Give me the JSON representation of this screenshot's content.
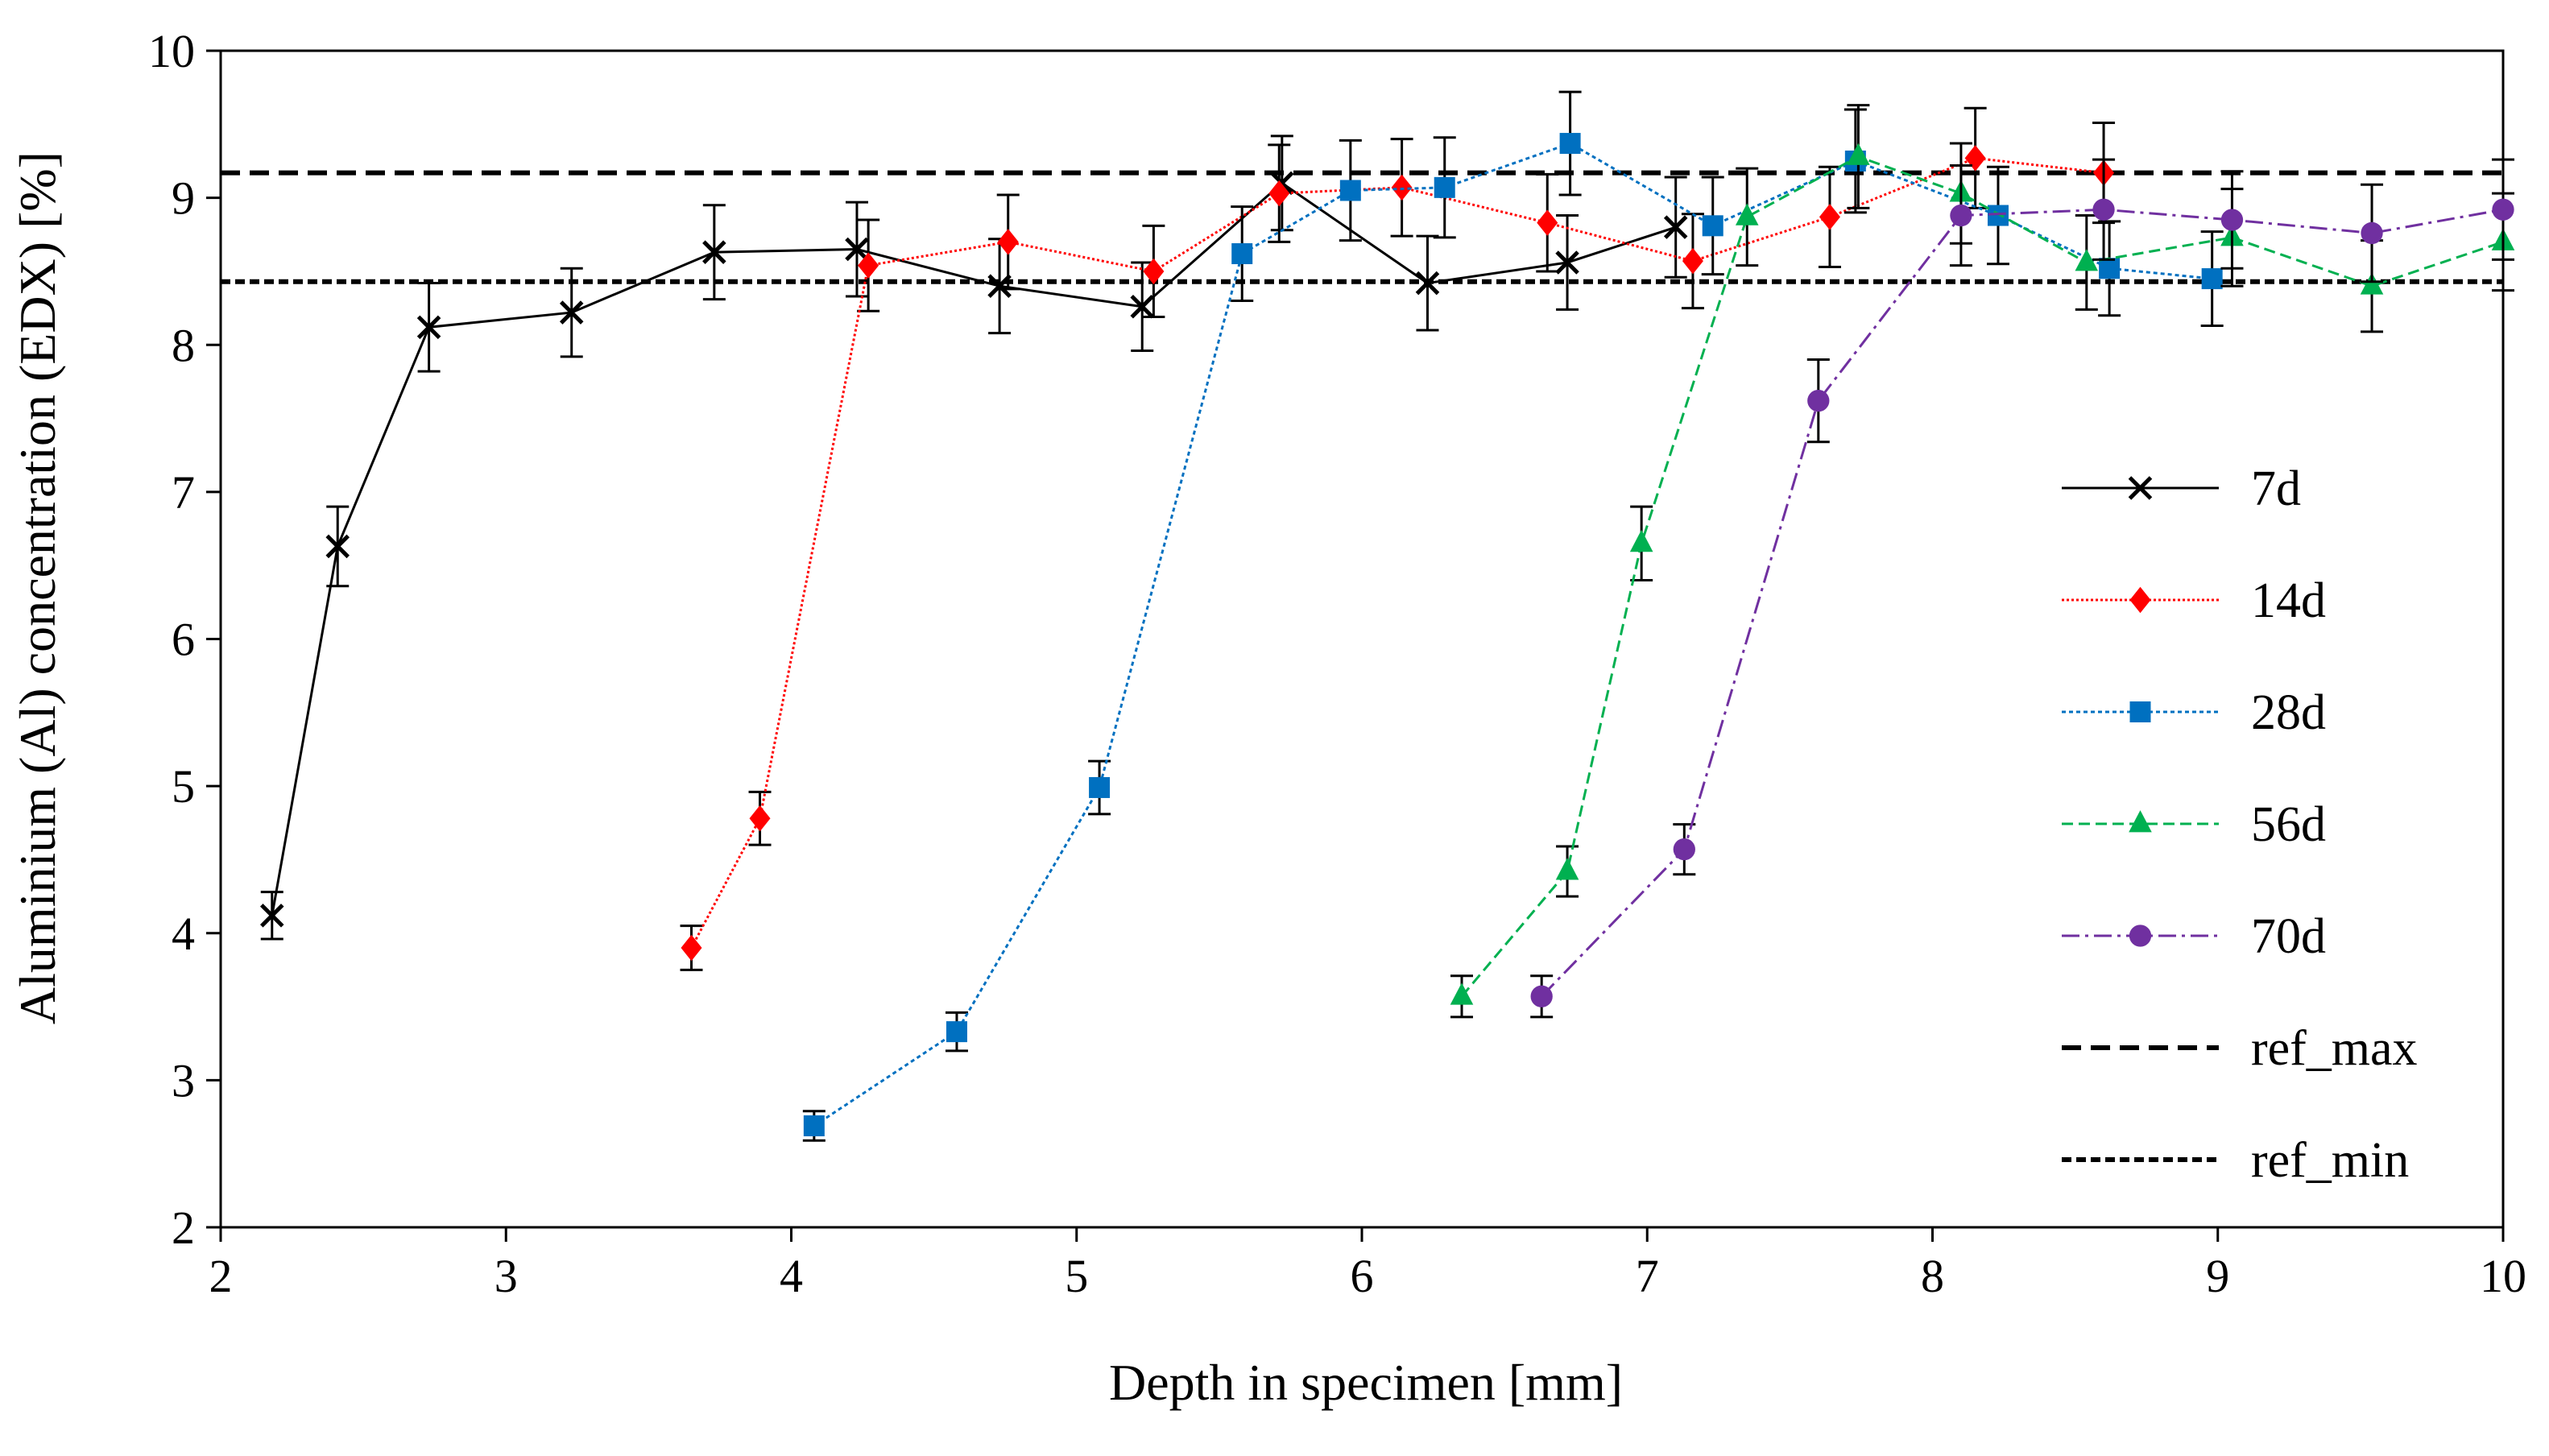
{
  "chart_data": {
    "type": "line",
    "title": "",
    "xlabel": "Depth in specimen [mm]",
    "ylabel": "Aluminium (Al) concentration (EDX) [%]",
    "xlim": [
      2,
      10
    ],
    "ylim": [
      2,
      10
    ],
    "xticks": [
      "2",
      "3",
      "4",
      "5",
      "6",
      "7",
      "8",
      "9",
      "10"
    ],
    "yticks": [
      "2",
      "3",
      "4",
      "5",
      "6",
      "7",
      "8",
      "9",
      "10"
    ],
    "legend_position": "right",
    "series": [
      {
        "name": "7d",
        "color": "#000000",
        "marker": "x",
        "dash": "solid",
        "linewidth": 3,
        "x": [
          2.18,
          2.41,
          2.73,
          3.23,
          3.73,
          4.23,
          4.73,
          5.23,
          5.72,
          6.23,
          6.72,
          7.1
        ],
        "y": [
          4.12,
          6.63,
          8.12,
          8.22,
          8.63,
          8.65,
          8.4,
          8.26,
          9.1,
          8.42,
          8.56,
          8.8
        ],
        "err": [
          0.16,
          0.27,
          0.3,
          0.3,
          0.32,
          0.32,
          0.32,
          0.3,
          0.32,
          0.32,
          0.32,
          0.34
        ]
      },
      {
        "name": "14d",
        "color": "#ff0000",
        "marker": "diamond",
        "dash": "3,3",
        "linewidth": 3,
        "x": [
          3.65,
          3.89,
          4.27,
          4.76,
          5.27,
          5.71,
          6.14,
          6.65,
          7.16,
          7.64,
          8.15,
          8.6
        ],
        "y": [
          3.9,
          4.78,
          8.54,
          8.7,
          8.5,
          9.03,
          9.07,
          8.83,
          8.57,
          8.87,
          9.27,
          9.17
        ],
        "err": [
          0.15,
          0.18,
          0.31,
          0.32,
          0.31,
          0.33,
          0.33,
          0.33,
          0.32,
          0.34,
          0.34,
          0.34
        ]
      },
      {
        "name": "28d",
        "color": "#0070c0",
        "marker": "square",
        "dash": "5,4",
        "linewidth": 3,
        "x": [
          4.08,
          4.58,
          5.08,
          5.58,
          5.96,
          6.29,
          6.73,
          7.23,
          7.73,
          8.23,
          8.62,
          8.98
        ],
        "y": [
          2.69,
          3.33,
          4.99,
          8.62,
          9.05,
          9.07,
          9.37,
          8.81,
          9.25,
          8.88,
          8.52,
          8.45
        ],
        "err": [
          0.1,
          0.13,
          0.18,
          0.32,
          0.34,
          0.34,
          0.35,
          0.33,
          0.35,
          0.33,
          0.32,
          0.32
        ]
      },
      {
        "name": "56d",
        "color": "#00b050",
        "marker": "triangle",
        "dash": "14,7",
        "linewidth": 3,
        "x": [
          6.35,
          6.72,
          6.98,
          7.35,
          7.74,
          8.1,
          8.54,
          9.05,
          9.54,
          10.0
        ],
        "y": [
          3.57,
          4.42,
          6.65,
          8.87,
          9.28,
          9.03,
          8.56,
          8.73,
          8.4,
          8.7
        ],
        "err": [
          0.14,
          0.17,
          0.25,
          0.33,
          0.35,
          0.34,
          0.32,
          0.33,
          0.31,
          0.33
        ]
      },
      {
        "name": "70d",
        "color": "#7030a0",
        "marker": "circle",
        "dash": "22,7,4,7",
        "linewidth": 3,
        "x": [
          6.63,
          7.13,
          7.6,
          8.1,
          8.6,
          9.05,
          9.54,
          10.0
        ],
        "y": [
          3.57,
          4.57,
          7.62,
          8.88,
          8.92,
          8.85,
          8.76,
          8.92
        ],
        "err": [
          0.14,
          0.17,
          0.28,
          0.34,
          0.34,
          0.33,
          0.33,
          0.34
        ]
      }
    ],
    "reference_lines": [
      {
        "name": "ref_max",
        "y": 9.17,
        "color": "#000000",
        "dash": "24,12",
        "linewidth": 6
      },
      {
        "name": "ref_min",
        "y": 8.43,
        "color": "#000000",
        "dash": "12,6",
        "linewidth": 6
      }
    ]
  }
}
